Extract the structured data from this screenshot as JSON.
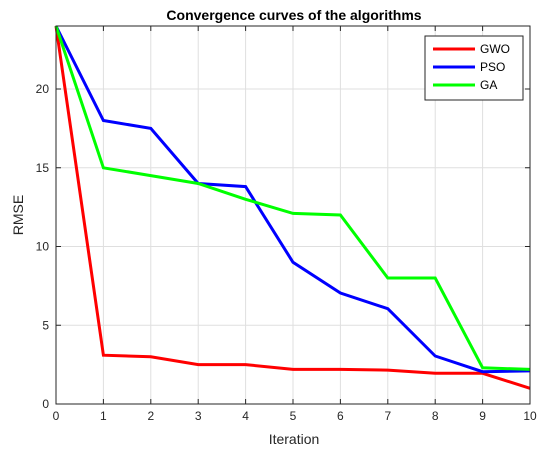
{
  "chart_data": {
    "type": "line",
    "title": "Convergence curves of the algorithms",
    "xlabel": "Iteration",
    "ylabel": "RMSE",
    "xlim": [
      0,
      10
    ],
    "ylim": [
      0,
      24
    ],
    "xticks": [
      0,
      1,
      2,
      3,
      4,
      5,
      6,
      7,
      8,
      9,
      10
    ],
    "yticks": [
      0,
      5,
      10,
      15,
      20
    ],
    "grid": true,
    "legend_position": "top-right",
    "x": [
      0,
      1,
      2,
      3,
      4,
      5,
      6,
      7,
      8,
      9,
      10
    ],
    "series": [
      {
        "name": "GWO",
        "color": "#ff0000",
        "values": [
          24,
          3.1,
          3.0,
          2.5,
          2.5,
          2.2,
          2.2,
          2.15,
          1.95,
          1.95,
          1.0
        ]
      },
      {
        "name": "PSO",
        "color": "#0000ff",
        "values": [
          24,
          18.0,
          17.5,
          14.0,
          13.8,
          9.0,
          7.05,
          6.05,
          3.05,
          2.05,
          2.1
        ]
      },
      {
        "name": "GA",
        "color": "#00ff00",
        "values": [
          24,
          15.0,
          14.5,
          14.0,
          13.0,
          12.1,
          12.0,
          8.0,
          8.0,
          2.3,
          2.2
        ]
      }
    ]
  }
}
